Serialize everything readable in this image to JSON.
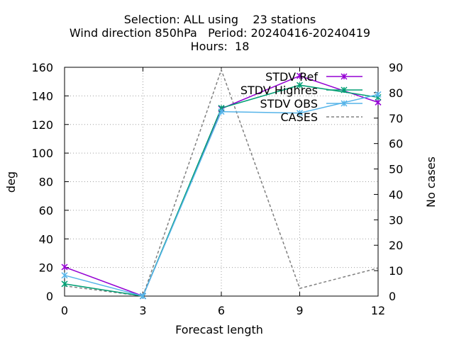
{
  "chart_data": {
    "type": "line",
    "title_lines": [
      "Selection: ALL using    23 stations",
      "Wind direction 850hPa   Period: 20240416-20240419",
      "Hours:  18"
    ],
    "xlabel": "Forecast length",
    "ylabel": "deg",
    "y2label": "No cases",
    "xlim": [
      0,
      12
    ],
    "ylim": [
      0,
      160
    ],
    "y2lim": [
      0,
      90
    ],
    "xticks": [
      0,
      3,
      6,
      9,
      12
    ],
    "yticks": [
      0,
      20,
      40,
      60,
      80,
      100,
      120,
      140,
      160
    ],
    "y2ticks": [
      0,
      10,
      20,
      30,
      40,
      50,
      60,
      70,
      80,
      90
    ],
    "grid": true,
    "legend_position": "top-right",
    "series": [
      {
        "name": "STDV Ref",
        "axis": "y",
        "color": "#9400d3",
        "marker": "x-star",
        "x": [
          0,
          3,
          6,
          9,
          12
        ],
        "values": [
          20.3,
          0,
          131,
          154,
          135.5
        ]
      },
      {
        "name": "STDV Highres",
        "axis": "y",
        "color": "#009e73",
        "marker": "x-star",
        "x": [
          0,
          3,
          6,
          9,
          12
        ],
        "values": [
          8.5,
          0,
          131.5,
          147.5,
          139
        ]
      },
      {
        "name": "STDV OBS",
        "axis": "y",
        "color": "#56b4e9",
        "marker": "x-star",
        "x": [
          0,
          3,
          6,
          9,
          12
        ],
        "values": [
          14.5,
          0,
          129,
          128,
          141
        ]
      },
      {
        "name": "CASES",
        "axis": "y2",
        "color": "#808080",
        "dash": "4,3",
        "x": [
          0,
          3,
          6,
          9,
          12
        ],
        "values": [
          4,
          0,
          89,
          3,
          11
        ]
      }
    ]
  }
}
